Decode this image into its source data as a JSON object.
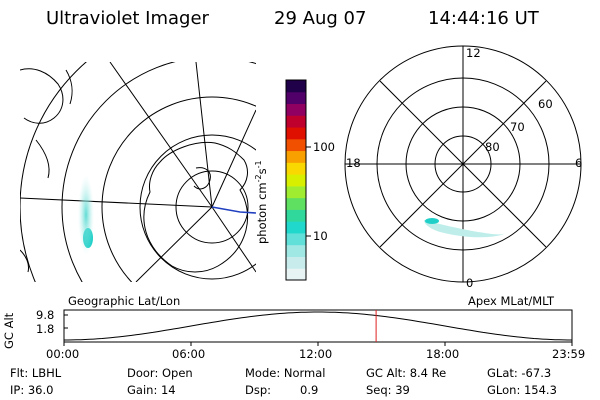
{
  "header": {
    "title": "Ultraviolet Imager",
    "date": "29 Aug 07",
    "time": "14:44:16 UT"
  },
  "colorbar": {
    "label": "photon cm",
    "exp1": "-2",
    "mid": "s",
    "exp2": "-1",
    "ticks": [
      "100",
      "10"
    ],
    "colors": [
      "#e8f4f4",
      "#c8ecec",
      "#a0e8e4",
      "#60e0d8",
      "#20d8cc",
      "#30d89c",
      "#60e060",
      "#a0ec30",
      "#d8f000",
      "#f8d800",
      "#f8a000",
      "#f05000",
      "#e01000",
      "#c0002c",
      "#900060",
      "#500068",
      "#200048"
    ]
  },
  "left_map": {
    "caption": "Geographic Lat/Lon"
  },
  "right_map": {
    "caption": "Apex MLat/MLT",
    "mlt_labels": {
      "top": "12",
      "left": "18",
      "right": "6",
      "bottom": "0"
    },
    "mlat_labels": [
      "60",
      "70",
      "80"
    ]
  },
  "altitude_plot": {
    "ylabel": "GC Alt",
    "yticks": [
      "9.8",
      "1.8"
    ],
    "xticks": [
      "00:00",
      "06:00",
      "12:00",
      "18:00",
      "23:59"
    ],
    "marker_time": "14:44"
  },
  "status": {
    "row1": {
      "flt": "Flt: LBHL",
      "door": "Door: Open",
      "mode": "Mode: Normal",
      "gcalt": "GC Alt: 8.4 Re",
      "glat": "GLat: -67.3"
    },
    "row2": {
      "ip": "IP: 36.0",
      "gain": "Gain: 14",
      "dsp_label": "Dsp:",
      "dsp_value": "0.9",
      "seq": "Seq: 39",
      "glon": "GLon: 154.3"
    }
  }
}
